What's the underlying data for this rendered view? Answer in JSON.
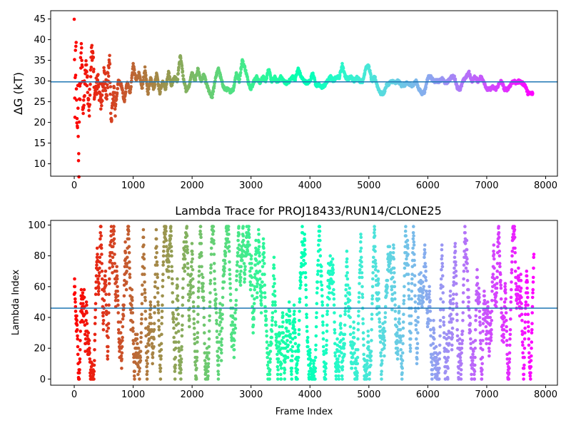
{
  "chart_data": [
    {
      "type": "scatter",
      "title": "",
      "xlabel": "",
      "ylabel": "ΔG (kT)",
      "xlim": [
        -400,
        8200
      ],
      "ylim": [
        7,
        47
      ],
      "xticks": [
        0,
        1000,
        2000,
        3000,
        4000,
        5000,
        6000,
        7000,
        8000
      ],
      "yticks": [
        10,
        15,
        20,
        25,
        30,
        35,
        40,
        45
      ],
      "hline": 29.8,
      "colormap": "rainbow (red at frame 0 → violet at last frame)",
      "frame_count": 7800,
      "trace_keypoints": [
        [
          0,
          44
        ],
        [
          10,
          20
        ],
        [
          20,
          36
        ],
        [
          30,
          41
        ],
        [
          40,
          24
        ],
        [
          50,
          17
        ],
        [
          60,
          30
        ],
        [
          70,
          13.5
        ],
        [
          80,
          8
        ],
        [
          90,
          33
        ],
        [
          100,
          27
        ],
        [
          120,
          42
        ],
        [
          150,
          22
        ],
        [
          200,
          34
        ],
        [
          250,
          22
        ],
        [
          300,
          39
        ],
        [
          350,
          26
        ],
        [
          400,
          31
        ],
        [
          450,
          24
        ],
        [
          500,
          32
        ],
        [
          550,
          27
        ],
        [
          600,
          35
        ],
        [
          630,
          20
        ],
        [
          660,
          27
        ],
        [
          700,
          24
        ],
        [
          750,
          30
        ],
        [
          800,
          29
        ],
        [
          850,
          25
        ],
        [
          900,
          30
        ],
        [
          950,
          27
        ],
        [
          1000,
          34
        ],
        [
          1050,
          30
        ],
        [
          1100,
          32
        ],
        [
          1150,
          28
        ],
        [
          1200,
          33
        ],
        [
          1250,
          27
        ],
        [
          1300,
          31
        ],
        [
          1350,
          28
        ],
        [
          1400,
          32
        ],
        [
          1450,
          27
        ],
        [
          1500,
          30
        ],
        [
          1550,
          28
        ],
        [
          1600,
          32
        ],
        [
          1650,
          29
        ],
        [
          1700,
          31
        ],
        [
          1750,
          30
        ],
        [
          1800,
          36.5
        ],
        [
          1850,
          31
        ],
        [
          1900,
          27.5
        ],
        [
          1950,
          29
        ],
        [
          2000,
          32
        ],
        [
          2050,
          30
        ],
        [
          2100,
          33
        ],
        [
          2150,
          30
        ],
        [
          2200,
          31.5
        ],
        [
          2250,
          29
        ],
        [
          2300,
          27
        ],
        [
          2340,
          26
        ],
        [
          2400,
          31
        ],
        [
          2450,
          33
        ],
        [
          2500,
          30
        ],
        [
          2550,
          28
        ],
        [
          2600,
          28
        ],
        [
          2650,
          27.5
        ],
        [
          2700,
          28
        ],
        [
          2750,
          32
        ],
        [
          2800,
          30
        ],
        [
          2850,
          35
        ],
        [
          2900,
          33
        ],
        [
          2950,
          30
        ],
        [
          3000,
          28
        ],
        [
          3050,
          30
        ],
        [
          3100,
          31
        ],
        [
          3150,
          29.5
        ],
        [
          3200,
          31
        ],
        [
          3250,
          30
        ],
        [
          3300,
          33
        ],
        [
          3350,
          30
        ],
        [
          3400,
          31
        ],
        [
          3450,
          29.5
        ],
        [
          3500,
          31
        ],
        [
          3550,
          30
        ],
        [
          3600,
          29.5
        ],
        [
          3650,
          30
        ],
        [
          3700,
          31
        ],
        [
          3750,
          30.5
        ],
        [
          3800,
          33
        ],
        [
          3850,
          31
        ],
        [
          3900,
          30
        ],
        [
          3950,
          29.5
        ],
        [
          4000,
          30
        ],
        [
          4050,
          32
        ],
        [
          4100,
          29
        ],
        [
          4150,
          29
        ],
        [
          4200,
          28.5
        ],
        [
          4250,
          29
        ],
        [
          4300,
          30
        ],
        [
          4350,
          31
        ],
        [
          4400,
          30
        ],
        [
          4450,
          31
        ],
        [
          4500,
          31
        ],
        [
          4550,
          34
        ],
        [
          4600,
          31
        ],
        [
          4650,
          30.5
        ],
        [
          4700,
          31
        ],
        [
          4750,
          30
        ],
        [
          4800,
          31
        ],
        [
          4850,
          30
        ],
        [
          4900,
          30
        ],
        [
          4950,
          33.5
        ],
        [
          5000,
          33.5
        ],
        [
          5050,
          30
        ],
        [
          5100,
          31
        ],
        [
          5150,
          28.5
        ],
        [
          5200,
          27
        ],
        [
          5250,
          27
        ],
        [
          5300,
          29
        ],
        [
          5350,
          29.5
        ],
        [
          5400,
          30
        ],
        [
          5450,
          29.5
        ],
        [
          5500,
          30
        ],
        [
          5550,
          29
        ],
        [
          5600,
          29
        ],
        [
          5650,
          29.5
        ],
        [
          5700,
          29
        ],
        [
          5750,
          29
        ],
        [
          5800,
          30
        ],
        [
          5850,
          28
        ],
        [
          5900,
          27
        ],
        [
          5950,
          27.5
        ],
        [
          6000,
          31
        ],
        [
          6050,
          31
        ],
        [
          6100,
          30
        ],
        [
          6150,
          30
        ],
        [
          6200,
          30
        ],
        [
          6250,
          30.5
        ],
        [
          6300,
          29.5
        ],
        [
          6350,
          30
        ],
        [
          6400,
          31
        ],
        [
          6450,
          31
        ],
        [
          6500,
          28.5
        ],
        [
          6550,
          28
        ],
        [
          6600,
          30
        ],
        [
          6650,
          31
        ],
        [
          6700,
          32
        ],
        [
          6750,
          30
        ],
        [
          6800,
          31
        ],
        [
          6850,
          30
        ],
        [
          6900,
          31
        ],
        [
          6950,
          30
        ],
        [
          7000,
          28
        ],
        [
          7050,
          28
        ],
        [
          7100,
          28.5
        ],
        [
          7150,
          28
        ],
        [
          7200,
          29
        ],
        [
          7250,
          30
        ],
        [
          7300,
          28
        ],
        [
          7350,
          28
        ],
        [
          7400,
          29
        ],
        [
          7450,
          30
        ],
        [
          7500,
          29.5
        ],
        [
          7550,
          30
        ],
        [
          7600,
          29.5
        ],
        [
          7650,
          29
        ],
        [
          7700,
          27
        ],
        [
          7780,
          27
        ]
      ]
    },
    {
      "type": "scatter",
      "title": "Lambda Trace for PROJ18433/RUN14/CLONE25",
      "xlabel": "Frame Index",
      "ylabel": "Lambda Index",
      "xlim": [
        -400,
        8200
      ],
      "ylim": [
        -4,
        103
      ],
      "xticks": [
        0,
        1000,
        2000,
        3000,
        4000,
        5000,
        6000,
        7000,
        8000
      ],
      "yticks": [
        0,
        20,
        40,
        60,
        80,
        100
      ],
      "hline": 46,
      "colormap": "rainbow (red at frame 0 → violet at last frame)",
      "frame_count": 7800,
      "value_range": [
        0,
        99
      ],
      "distribution": "lambda index wanders uniformly across 0–99 throughout all frames"
    }
  ],
  "colors": {
    "hline": "#1f77b4",
    "axes": "#000000",
    "background": "#ffffff"
  }
}
